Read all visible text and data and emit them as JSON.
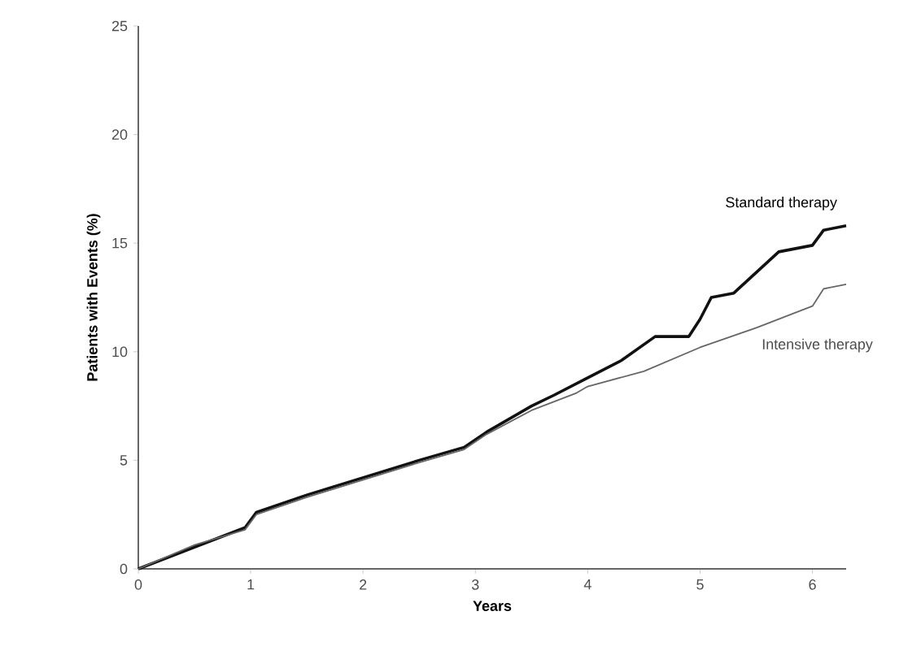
{
  "chart_data": {
    "type": "line",
    "xlabel": "Years",
    "ylabel": "Patients with Events (%)",
    "xlim": [
      0,
      6.3
    ],
    "ylim": [
      0,
      25
    ],
    "xticks": [
      0,
      1,
      2,
      3,
      4,
      5,
      6
    ],
    "yticks": [
      0,
      5,
      10,
      15,
      20,
      25
    ],
    "grid": false,
    "legend": false,
    "marker": "none",
    "line_style": "solid",
    "series": [
      {
        "name": "Standard therapy",
        "color": "#111111",
        "x": [
          0,
          0.5,
          0.95,
          1.05,
          1.5,
          2,
          2.5,
          2.9,
          3.1,
          3.5,
          3.7,
          4,
          4.3,
          4.6,
          4.9,
          5,
          5.1,
          5.3,
          5.7,
          6,
          6.1,
          6.3
        ],
        "values": [
          0,
          1.0,
          1.9,
          2.6,
          3.4,
          4.2,
          5.0,
          5.6,
          6.3,
          7.5,
          8.0,
          8.8,
          9.6,
          10.7,
          10.7,
          11.5,
          12.5,
          12.7,
          14.6,
          14.9,
          15.6,
          15.8
        ]
      },
      {
        "name": "Intensive therapy",
        "color": "#666666",
        "x": [
          0,
          0.5,
          0.95,
          1.05,
          1.5,
          2,
          2.5,
          2.9,
          3.1,
          3.5,
          3.9,
          4,
          4.5,
          5,
          5.5,
          6,
          6.1,
          6.3
        ],
        "values": [
          0,
          1.1,
          1.8,
          2.5,
          3.3,
          4.1,
          4.9,
          5.5,
          6.2,
          7.3,
          8.1,
          8.4,
          9.1,
          10.2,
          11.1,
          12.1,
          12.9,
          13.1
        ]
      }
    ]
  }
}
